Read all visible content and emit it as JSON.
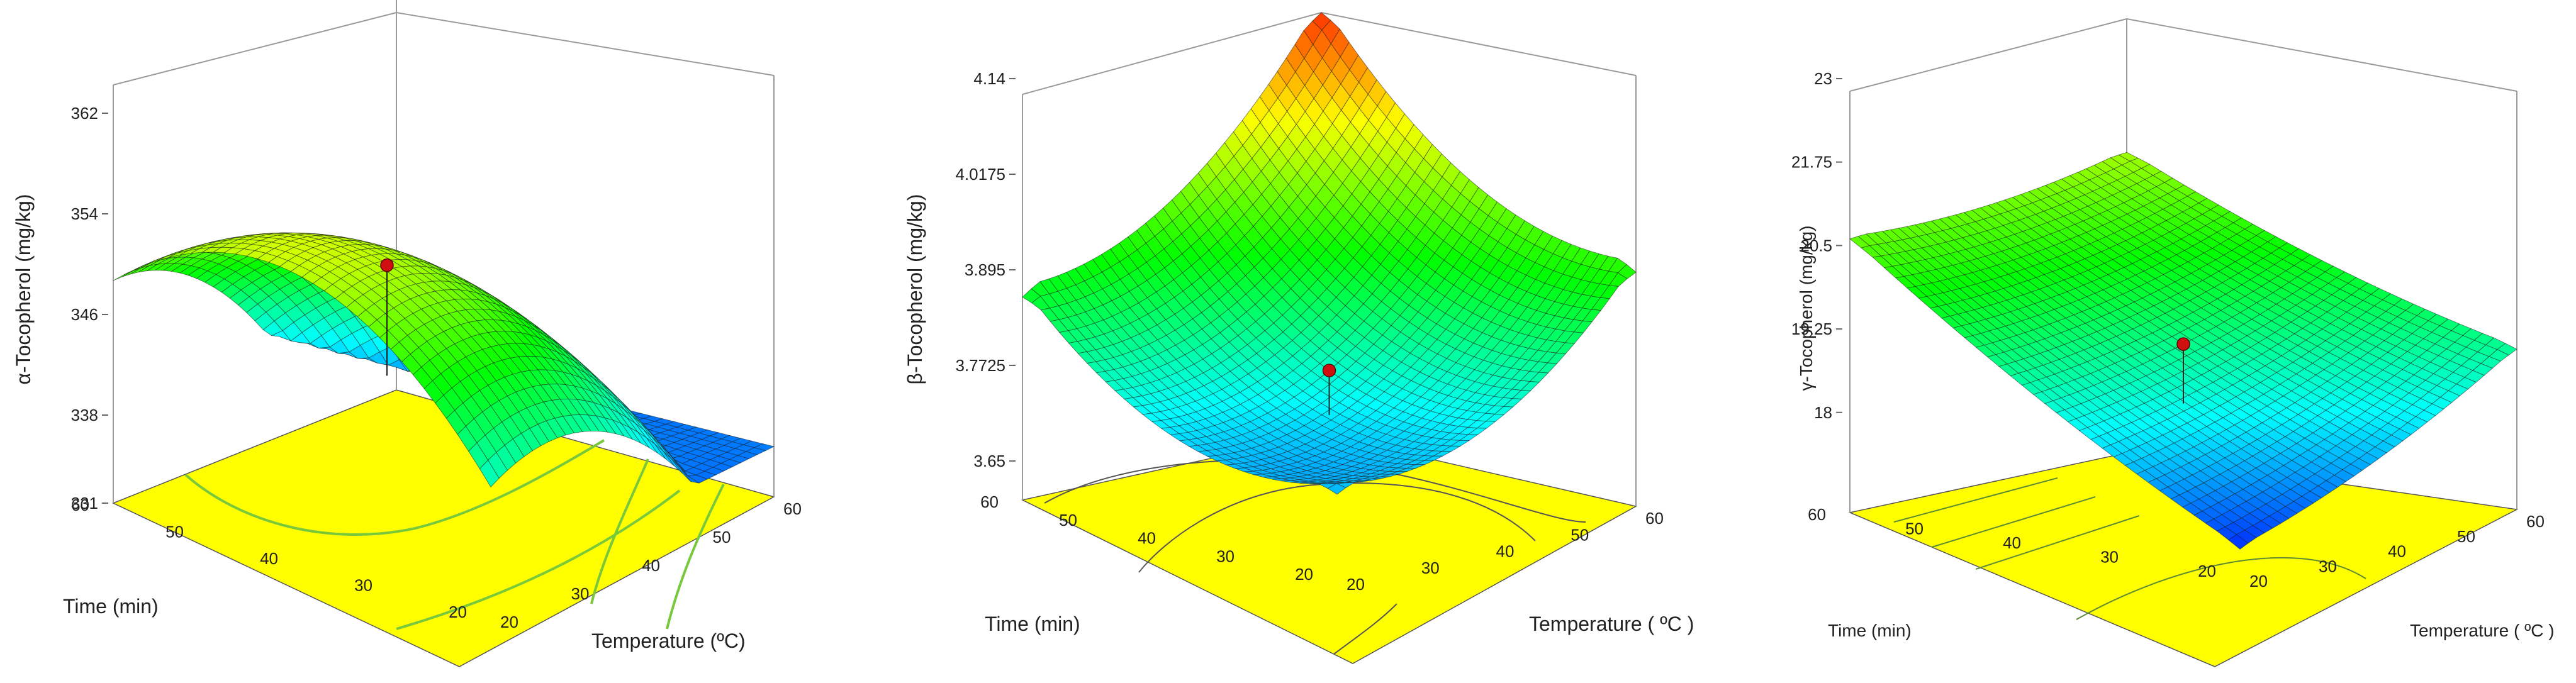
{
  "chart_data": [
    {
      "type": "surface3d",
      "zlabel": "α-Tocopherol (mg/kg)",
      "xlabel": "Temperature (ºC)",
      "ylabel": "Time (min)",
      "z_ticks": [
        "331",
        "338",
        "346",
        "354",
        "362"
      ],
      "x_ticks": [
        "20",
        "30",
        "40",
        "50",
        "60"
      ],
      "y_ticks": [
        "20",
        "30",
        "40",
        "50",
        "60"
      ],
      "zlim": [
        331,
        362
      ],
      "xlim": [
        20,
        60
      ],
      "ylim": [
        20,
        60
      ],
      "colormap": [
        "#0000ff",
        "#00ffff",
        "#00ff00",
        "#ffff00",
        "#ff0000"
      ],
      "contour_plane_color": "#ffff00",
      "corners": {
        "t20_m20": 334,
        "t60_m20": 335,
        "t20_m60": 346,
        "t60_m60": 333
      },
      "optimum": {
        "temperature": 43,
        "time": 52,
        "value": 353
      }
    },
    {
      "type": "surface3d",
      "zlabel": "β-Tocopherol  (mg/kg)",
      "xlabel": "Temperature ( ºC )",
      "ylabel": "Time  (min)",
      "z_ticks": [
        "3.65",
        "3.7725",
        "3.895",
        "4.0175",
        "4.14"
      ],
      "x_ticks": [
        "20",
        "30",
        "40",
        "50",
        "60"
      ],
      "y_ticks": [
        "20",
        "30",
        "40",
        "50",
        "60"
      ],
      "zlim": [
        3.6,
        4.14
      ],
      "xlim": [
        20,
        60
      ],
      "ylim": [
        20,
        60
      ],
      "colormap": [
        "#0000ff",
        "#00ffff",
        "#00ff00",
        "#ffff00",
        "#ff0000"
      ],
      "contour_plane_color": "#ffff00",
      "corners": {
        "t20_m20": 4.14,
        "t60_m20": 3.9,
        "t20_m60": 3.86,
        "t60_m60": 3.7
      },
      "optimum": {
        "temperature": 40,
        "time": 40,
        "value": 3.77
      }
    },
    {
      "type": "surface3d",
      "zlabel": "γ-Tocopherol   (mg/kg)",
      "xlabel": "Temperature ( ºC )",
      "ylabel": "Time (min)",
      "z_ticks": [
        "18",
        "19.25",
        "20.5",
        "21.75",
        "23"
      ],
      "x_ticks": [
        "20",
        "30",
        "40",
        "50",
        "60"
      ],
      "y_ticks": [
        "20",
        "30",
        "40",
        "50",
        "60"
      ],
      "zlim": [
        16.5,
        23
      ],
      "xlim": [
        20,
        60
      ],
      "ylim": [
        20,
        60
      ],
      "colormap": [
        "#0000ff",
        "#00ffff",
        "#00ff00",
        "#ffff00",
        "#ff0000"
      ],
      "contour_plane_color": "#ffff00",
      "corners": {
        "t20_m20": 21.0,
        "t60_m20": 18.9,
        "t20_m60": 20.6,
        "t60_m60": 16.8
      },
      "optimum": {
        "temperature": 40,
        "time": 40,
        "value": 19.0
      }
    }
  ]
}
